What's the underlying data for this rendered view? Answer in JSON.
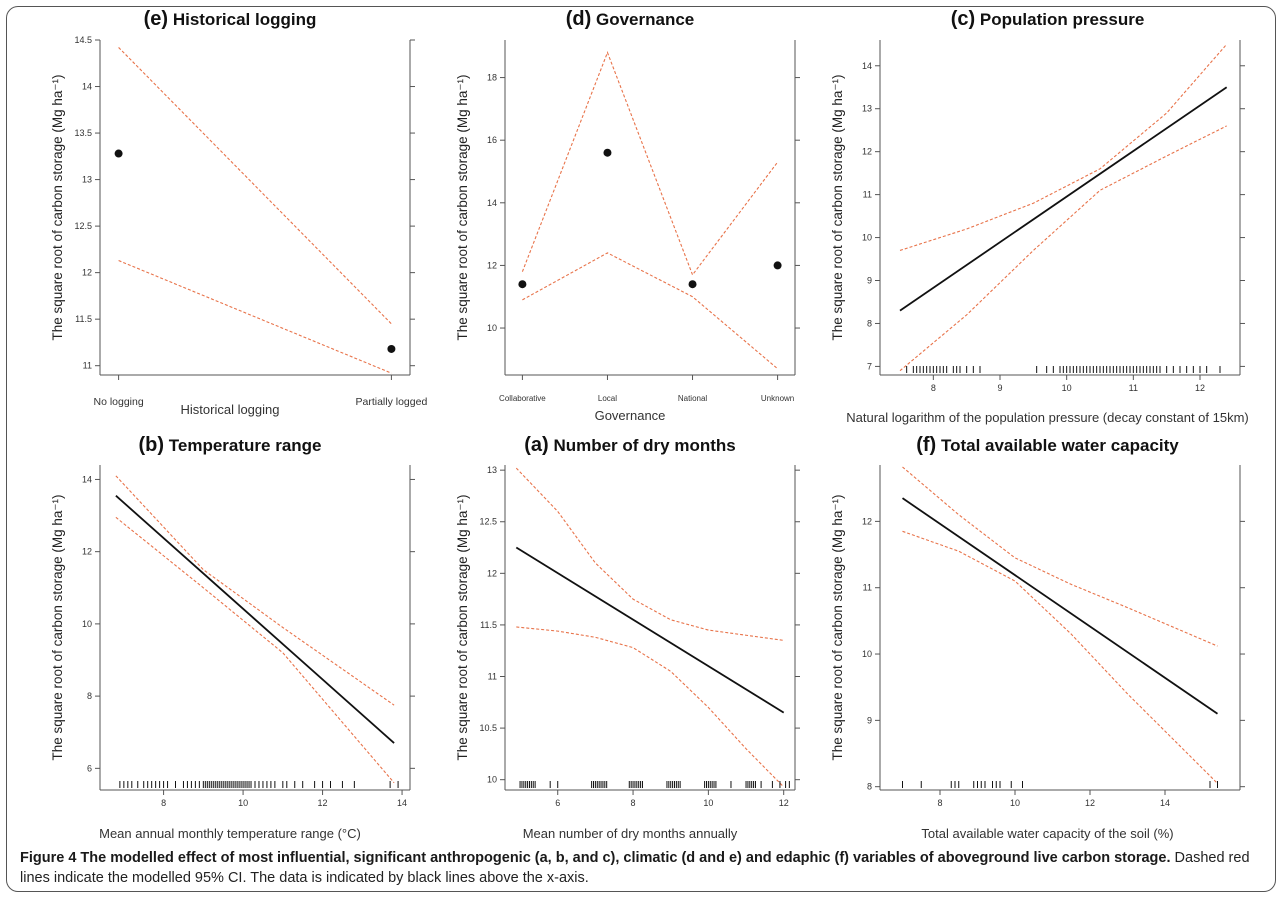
{
  "panels": [
    {
      "id": "e",
      "letter": "(e)",
      "title": "Historical logging",
      "xlabel": "Historical logging",
      "ylabel": "The square root of carbon storage (Mg ha⁻¹)",
      "type": "categorical",
      "categories": [
        "No logging",
        "Partially logged"
      ],
      "estimate": [
        13.28,
        11.18
      ],
      "ci_upper": [
        14.42,
        11.45
      ],
      "ci_lower": [
        12.13,
        10.92
      ],
      "ylim": [
        10.9,
        14.5
      ],
      "yticks": [
        "11",
        "11.5",
        "12",
        "12.5",
        "13",
        "13.5",
        "14",
        "14.5"
      ]
    },
    {
      "id": "d",
      "letter": "(d)",
      "title": "Governance",
      "xlabel": "Governance",
      "ylabel": "The square root of carbon storage (Mg ha⁻¹)",
      "type": "categorical",
      "categories": [
        "Collaborative",
        "Local",
        "National",
        "Unknown"
      ],
      "estimate": [
        11.4,
        15.6,
        11.4,
        12.0
      ],
      "ci_upper": [
        11.8,
        18.8,
        11.7,
        15.3
      ],
      "ci_lower": [
        10.9,
        12.4,
        11.0,
        8.7
      ],
      "ylim": [
        8.5,
        19.2
      ],
      "yticks": [
        "10",
        "12",
        "14",
        "16",
        "18"
      ]
    },
    {
      "id": "c",
      "letter": "(c)",
      "title": "Population pressure",
      "xlabel": "Natural logarithm of the population pressure (decay constant of 15km)",
      "ylabel": "The square root of carbon storage (Mg ha⁻¹)",
      "type": "line",
      "xlim": [
        7.2,
        12.6
      ],
      "ylim": [
        6.8,
        14.6
      ],
      "x": [
        7.5,
        12.4
      ],
      "y": [
        8.3,
        13.5
      ],
      "ci_upper": {
        "x": [
          7.5,
          8.5,
          9.5,
          10.5,
          11.5,
          12.4
        ],
        "y": [
          9.7,
          10.2,
          10.8,
          11.6,
          12.9,
          14.5
        ]
      },
      "ci_lower": {
        "x": [
          7.5,
          8.5,
          9.5,
          10.5,
          11.5,
          12.4
        ],
        "y": [
          6.9,
          8.2,
          9.7,
          11.1,
          11.9,
          12.6
        ]
      },
      "xticks": [
        "8",
        "9",
        "10",
        "11",
        "12"
      ],
      "yticks": [
        "7",
        "8",
        "9",
        "10",
        "11",
        "12",
        "13",
        "14"
      ],
      "rug": [
        7.6,
        7.7,
        7.75,
        7.8,
        7.85,
        7.9,
        7.95,
        8.0,
        8.05,
        8.1,
        8.15,
        8.2,
        8.3,
        8.35,
        8.4,
        8.5,
        8.6,
        8.7,
        9.55,
        9.7,
        9.8,
        9.9,
        9.95,
        10.0,
        10.05,
        10.1,
        10.15,
        10.2,
        10.25,
        10.3,
        10.35,
        10.4,
        10.45,
        10.5,
        10.55,
        10.6,
        10.65,
        10.7,
        10.75,
        10.8,
        10.85,
        10.9,
        10.95,
        11.0,
        11.05,
        11.1,
        11.15,
        11.2,
        11.25,
        11.3,
        11.35,
        11.4,
        11.5,
        11.6,
        11.7,
        11.8,
        11.9,
        12.0,
        12.1,
        12.3
      ]
    },
    {
      "id": "b",
      "letter": "(b)",
      "title": "Temperature range",
      "xlabel": "Mean annual monthly temperature range (°C)",
      "ylabel": "The square root of carbon storage (Mg ha⁻¹)",
      "type": "line",
      "xlim": [
        6.4,
        14.2
      ],
      "ylim": [
        5.4,
        14.4
      ],
      "x": [
        6.8,
        13.8
      ],
      "y": [
        13.55,
        6.7
      ],
      "ci_upper": {
        "x": [
          6.8,
          9.0,
          11.0,
          13.8
        ],
        "y": [
          14.1,
          11.5,
          9.9,
          7.75
        ]
      },
      "ci_lower": {
        "x": [
          6.8,
          9.0,
          11.0,
          13.8
        ],
        "y": [
          12.95,
          11.0,
          9.2,
          5.6
        ]
      },
      "xticks": [
        "8",
        "10",
        "12",
        "14"
      ],
      "yticks": [
        "6",
        "8",
        "10",
        "12",
        "14"
      ],
      "rug": [
        6.9,
        7.0,
        7.1,
        7.2,
        7.35,
        7.5,
        7.6,
        7.7,
        7.8,
        7.9,
        8.0,
        8.1,
        8.3,
        8.5,
        8.6,
        8.7,
        8.8,
        8.9,
        9.0,
        9.05,
        9.1,
        9.15,
        9.2,
        9.25,
        9.3,
        9.35,
        9.4,
        9.45,
        9.5,
        9.55,
        9.6,
        9.65,
        9.7,
        9.75,
        9.8,
        9.85,
        9.9,
        9.95,
        10.0,
        10.05,
        10.1,
        10.15,
        10.2,
        10.3,
        10.4,
        10.5,
        10.6,
        10.7,
        10.8,
        11.0,
        11.1,
        11.3,
        11.5,
        11.8,
        12.0,
        12.2,
        12.5,
        12.8,
        13.7,
        13.9
      ]
    },
    {
      "id": "a",
      "letter": "(a)",
      "title": "Number of dry months",
      "xlabel": "Mean number of dry months annually",
      "ylabel": "The square root of carbon storage (Mg ha⁻¹)",
      "type": "line",
      "xlim": [
        4.6,
        12.3
      ],
      "ylim": [
        9.9,
        13.05
      ],
      "x": [
        4.9,
        12.0
      ],
      "y": [
        12.25,
        10.65
      ],
      "ci_upper": {
        "x": [
          4.9,
          6.0,
          7.0,
          8.0,
          9.0,
          10.0,
          11.0,
          12.0
        ],
        "y": [
          13.02,
          12.6,
          12.1,
          11.75,
          11.55,
          11.45,
          11.4,
          11.35
        ]
      },
      "ci_lower": {
        "x": [
          4.9,
          6.0,
          7.0,
          8.0,
          9.0,
          10.0,
          11.0,
          12.0
        ],
        "y": [
          11.48,
          11.44,
          11.38,
          11.28,
          11.05,
          10.7,
          10.3,
          9.93
        ]
      },
      "xticks": [
        "6",
        "8",
        "10",
        "12"
      ],
      "yticks": [
        "10",
        "10.5",
        "11",
        "11.5",
        "12",
        "12.5",
        "13"
      ],
      "rug": [
        5.0,
        5.05,
        5.1,
        5.15,
        5.2,
        5.25,
        5.3,
        5.35,
        5.4,
        5.8,
        6.0,
        6.9,
        6.95,
        7.0,
        7.05,
        7.1,
        7.15,
        7.2,
        7.25,
        7.3,
        7.9,
        7.95,
        8.0,
        8.05,
        8.1,
        8.15,
        8.2,
        8.25,
        8.9,
        8.95,
        9.0,
        9.05,
        9.1,
        9.15,
        9.2,
        9.25,
        9.9,
        9.95,
        10.0,
        10.05,
        10.1,
        10.15,
        10.2,
        10.6,
        11.0,
        11.05,
        11.1,
        11.15,
        11.2,
        11.25,
        11.4,
        11.7,
        11.9,
        12.05,
        12.15
      ]
    },
    {
      "id": "f",
      "letter": "(f)",
      "title": "Total available water capacity",
      "xlabel": "Total available water capacity of the soil (%)",
      "ylabel": "The square root of carbon storage (Mg ha⁻¹)",
      "type": "line",
      "xlim": [
        6.4,
        16.0
      ],
      "ylim": [
        7.95,
        12.85
      ],
      "x": [
        7.0,
        15.4
      ],
      "y": [
        12.35,
        9.1
      ],
      "ci_upper": {
        "x": [
          7.0,
          8.5,
          10.0,
          11.5,
          13.0,
          15.4
        ],
        "y": [
          12.82,
          12.1,
          11.45,
          11.05,
          10.7,
          10.12
        ]
      },
      "ci_lower": {
        "x": [
          7.0,
          8.5,
          10.0,
          11.5,
          13.0,
          15.4
        ],
        "y": [
          11.85,
          11.55,
          11.1,
          10.3,
          9.4,
          8.05
        ]
      },
      "xticks": [
        "8",
        "10",
        "12",
        "14"
      ],
      "yticks": [
        "8",
        "9",
        "10",
        "11",
        "12"
      ],
      "rug": [
        7.0,
        7.5,
        8.3,
        8.4,
        8.5,
        8.9,
        9.0,
        9.1,
        9.2,
        9.4,
        9.5,
        9.6,
        9.9,
        10.2,
        15.2,
        15.4
      ]
    }
  ],
  "caption": {
    "bold": "Figure 4 The modelled effect of most influential, significant anthropogenic (a, b, and c), climatic (d and e) and edaphic (f) variables of aboveground live carbon storage.",
    "normal": " Dashed red lines indicate the modelled 95% CI. The data is indicated by black lines above the x-axis."
  },
  "colors": {
    "estimate": "#111111",
    "ci": "#e8734a",
    "axis": "#555555"
  }
}
